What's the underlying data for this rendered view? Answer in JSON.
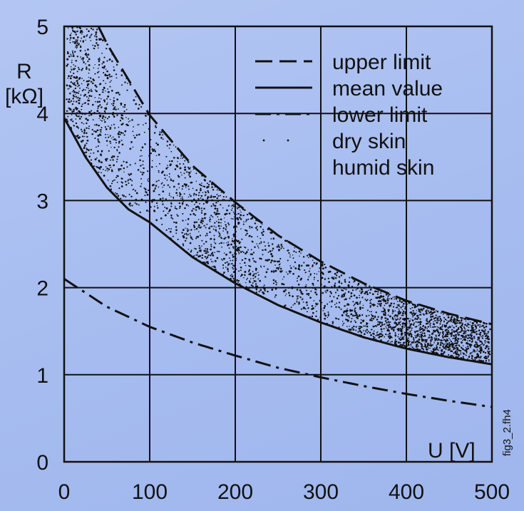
{
  "chart_data": {
    "type": "line",
    "xlabel": "U [V]",
    "ylabel_line1": "R",
    "ylabel_line2": "[kΩ]",
    "xlim": [
      0,
      500
    ],
    "ylim": [
      0,
      5
    ],
    "xticks": [
      "0",
      "100",
      "200",
      "300",
      "400",
      "500"
    ],
    "yticks": [
      "0",
      "1",
      "2",
      "3",
      "4",
      "5"
    ],
    "grid": true,
    "legend_position": "top-right",
    "side_note": "fig3_2.fh4",
    "series": [
      {
        "name": "upper limit",
        "style": "dashed",
        "x": [
          40,
          50,
          100,
          150,
          200,
          250,
          300,
          350,
          400,
          450,
          500
        ],
        "y": [
          5.0,
          4.8,
          3.98,
          3.4,
          2.98,
          2.6,
          2.3,
          2.05,
          1.85,
          1.7,
          1.58
        ]
      },
      {
        "name": "mean value",
        "style": "solid",
        "x": [
          0,
          25,
          50,
          75,
          100,
          150,
          200,
          250,
          300,
          350,
          400,
          450,
          500
        ],
        "y": [
          3.95,
          3.5,
          3.15,
          2.9,
          2.75,
          2.35,
          2.05,
          1.8,
          1.6,
          1.43,
          1.3,
          1.2,
          1.12
        ]
      },
      {
        "name": "lower limit",
        "style": "dashdot",
        "x": [
          0,
          50,
          100,
          150,
          200,
          250,
          300,
          350,
          400,
          450,
          500
        ],
        "y": [
          2.1,
          1.78,
          1.55,
          1.37,
          1.22,
          1.08,
          0.97,
          0.87,
          0.78,
          0.7,
          0.63
        ]
      },
      {
        "name": "dry skin",
        "style": "points-sparse"
      },
      {
        "name": "humid skin",
        "style": "points-dense"
      }
    ]
  },
  "colors": {
    "ink": "#111111",
    "background": "#a9bff0"
  }
}
